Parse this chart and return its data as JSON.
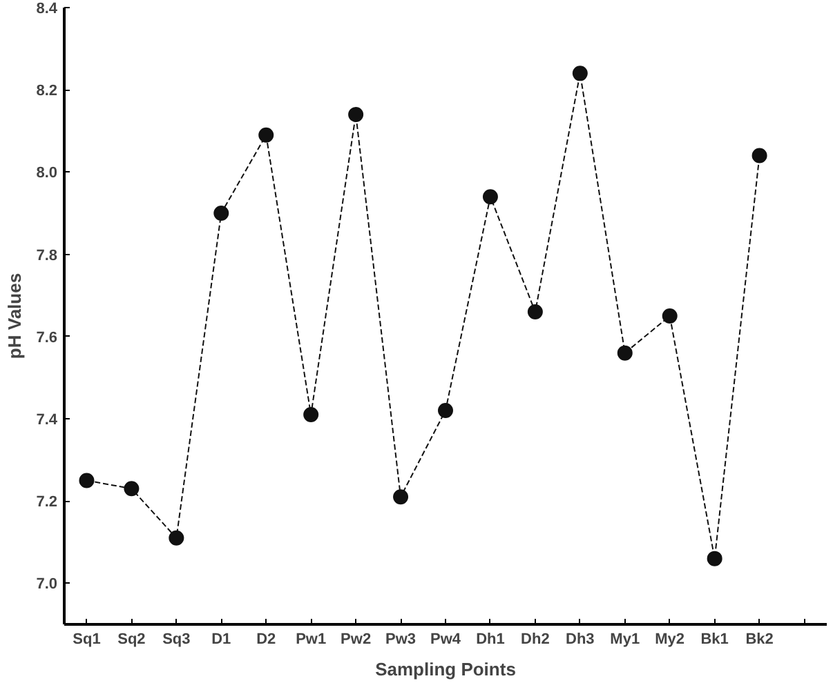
{
  "chart_data": {
    "type": "line",
    "xlabel": "Sampling Points",
    "ylabel": "pH Values",
    "categories": [
      "Sq1",
      "Sq2",
      "Sq3",
      "D1",
      "D2",
      "Pw1",
      "Pw2",
      "Pw3",
      "Pw4",
      "Dh1",
      "Dh2",
      "Dh3",
      "My1",
      "My2",
      "Bk1",
      "Bk2",
      null
    ],
    "series": [
      {
        "color": "#111111",
        "values": [
          7.25,
          7.23,
          7.11,
          7.9,
          8.09,
          7.41,
          8.14,
          7.21,
          7.42,
          7.94,
          7.66,
          8.24,
          7.56,
          7.65,
          7.06,
          8.04,
          null
        ]
      }
    ],
    "ylim": [
      6.9,
      8.4
    ],
    "yticks": [
      {
        "value": 7,
        "label": "7.0"
      },
      7.2,
      7.4,
      7.6,
      7.8,
      {
        "value": 8,
        "label": "8.0"
      },
      8.2,
      8.4
    ],
    "grid": false,
    "marker": "circle",
    "line_style": "dashed"
  }
}
